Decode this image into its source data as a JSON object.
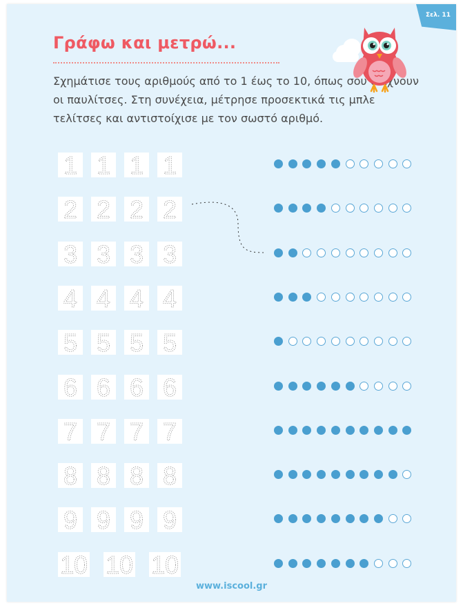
{
  "page_badge": "Σελ. 11",
  "title": "Γράφω και μετρώ...",
  "instructions": "Σχημάτισε τους αριθμούς από το 1 έως το 10, όπως σου δείχνουν οι παυλίτσες. Στη συνέχεια, μέτρησε προσεκτικά τις μπλε τελίτσες και αντιστοίχισε με τον σωστό αριθμό.",
  "illustration": "owl-icon",
  "rows": [
    {
      "digit": "1",
      "tiles": 4,
      "filled_dots": 5,
      "total_dots": 10
    },
    {
      "digit": "2",
      "tiles": 4,
      "filled_dots": 4,
      "total_dots": 10
    },
    {
      "digit": "3",
      "tiles": 4,
      "filled_dots": 2,
      "total_dots": 10
    },
    {
      "digit": "4",
      "tiles": 4,
      "filled_dots": 3,
      "total_dots": 10
    },
    {
      "digit": "5",
      "tiles": 4,
      "filled_dots": 1,
      "total_dots": 10
    },
    {
      "digit": "6",
      "tiles": 4,
      "filled_dots": 6,
      "total_dots": 10
    },
    {
      "digit": "7",
      "tiles": 4,
      "filled_dots": 10,
      "total_dots": 10
    },
    {
      "digit": "8",
      "tiles": 4,
      "filled_dots": 9,
      "total_dots": 10
    },
    {
      "digit": "9",
      "tiles": 4,
      "filled_dots": 8,
      "total_dots": 10
    },
    {
      "digit": "10",
      "tiles": 3,
      "filled_dots": 7,
      "total_dots": 10
    }
  ],
  "example_match": {
    "from_digit": "2",
    "to_row_dots": 2
  },
  "colors": {
    "title": "#ef5a63",
    "accent": "#5bb0dc",
    "dot": "#4a9fd0",
    "background": "#e4f3fc"
  },
  "footer": "www.iscool.gr"
}
